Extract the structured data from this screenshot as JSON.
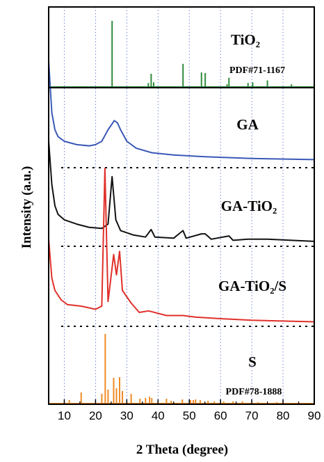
{
  "chart_data": {
    "type": "line",
    "title": "",
    "xlabel": "2 Theta (degree)",
    "ylabel": "Intensity (a.u.)",
    "xlim": [
      5,
      90
    ],
    "xticks": [
      10,
      20,
      30,
      40,
      50,
      60,
      70,
      80,
      90
    ],
    "grid": "vertical dotted lines at x ticks",
    "panels": [
      {
        "name": "TiO2",
        "label_main": "TiO₂",
        "label_sub": "PDF#71-1167",
        "kind": "reference_sticks",
        "color": "#2e8b3a",
        "peaks_x": [
          25.3,
          36.9,
          37.8,
          38.6,
          48.0,
          53.9,
          55.1,
          62.1,
          62.7,
          68.8,
          70.3,
          75.0,
          82.7
        ],
        "peaks_rel_height": [
          1.0,
          0.06,
          0.2,
          0.07,
          0.35,
          0.22,
          0.21,
          0.04,
          0.14,
          0.06,
          0.07,
          0.1,
          0.04
        ]
      },
      {
        "name": "GA",
        "label_main": "GA",
        "kind": "profile",
        "color": "#3a58b6",
        "points": [
          [
            5,
            0.9
          ],
          [
            6,
            0.45
          ],
          [
            7,
            0.3
          ],
          [
            8,
            0.24
          ],
          [
            10,
            0.2
          ],
          [
            14,
            0.17
          ],
          [
            18,
            0.16
          ],
          [
            20,
            0.17
          ],
          [
            22,
            0.2
          ],
          [
            24,
            0.3
          ],
          [
            26,
            0.38
          ],
          [
            27,
            0.36
          ],
          [
            28,
            0.3
          ],
          [
            30,
            0.2
          ],
          [
            33,
            0.14
          ],
          [
            38,
            0.1
          ],
          [
            45,
            0.08
          ],
          [
            55,
            0.065
          ],
          [
            70,
            0.05
          ],
          [
            90,
            0.04
          ]
        ],
        "baseline": "dotted"
      },
      {
        "name": "GA-TiO2",
        "label_main": "GA-TiO₂",
        "kind": "profile",
        "color": "#111111",
        "points": [
          [
            5,
            0.95
          ],
          [
            6,
            0.55
          ],
          [
            7,
            0.35
          ],
          [
            8,
            0.27
          ],
          [
            10,
            0.22
          ],
          [
            14,
            0.18
          ],
          [
            18,
            0.15
          ],
          [
            22,
            0.14
          ],
          [
            24,
            0.18
          ],
          [
            25.3,
            0.62
          ],
          [
            26.5,
            0.22
          ],
          [
            28,
            0.12
          ],
          [
            32,
            0.08
          ],
          [
            36,
            0.06
          ],
          [
            37.8,
            0.13
          ],
          [
            39,
            0.06
          ],
          [
            45,
            0.05
          ],
          [
            48,
            0.12
          ],
          [
            49,
            0.05
          ],
          [
            53.9,
            0.09
          ],
          [
            55.1,
            0.09
          ],
          [
            57,
            0.04
          ],
          [
            62.7,
            0.07
          ],
          [
            64,
            0.03
          ],
          [
            68.8,
            0.04
          ],
          [
            70.3,
            0.04
          ],
          [
            75,
            0.04
          ],
          [
            82.7,
            0.03
          ],
          [
            90,
            0.02
          ]
        ],
        "baseline": "dotted"
      },
      {
        "name": "GA-TiO2/S",
        "label_main": "GA-TiO₂/S",
        "kind": "profile",
        "color": "#e0302a",
        "points": [
          [
            5,
            0.55
          ],
          [
            6,
            0.3
          ],
          [
            7,
            0.22
          ],
          [
            9,
            0.16
          ],
          [
            11,
            0.13
          ],
          [
            15.4,
            0.12
          ],
          [
            20,
            0.1
          ],
          [
            22,
            0.12
          ],
          [
            23,
            1.0
          ],
          [
            24,
            0.15
          ],
          [
            25.8,
            0.45
          ],
          [
            26.7,
            0.32
          ],
          [
            27.7,
            0.47
          ],
          [
            28.6,
            0.22
          ],
          [
            31.4,
            0.14
          ],
          [
            34,
            0.08
          ],
          [
            37,
            0.09
          ],
          [
            42.7,
            0.06
          ],
          [
            48,
            0.06
          ],
          [
            52,
            0.05
          ],
          [
            60,
            0.04
          ],
          [
            70,
            0.03
          ],
          [
            90,
            0.02
          ]
        ],
        "baseline": "dotted"
      },
      {
        "name": "S",
        "label_main": "S",
        "label_sub": "PDF#78-1888",
        "kind": "reference_sticks",
        "color": "#f08a24",
        "peaks_x": [
          11.6,
          15.4,
          22.0,
          23.1,
          24.0,
          25.8,
          26.7,
          27.7,
          28.6,
          31.4,
          34.2,
          36.0,
          37.3,
          38.0,
          42.7,
          44.2,
          47.8,
          50.4,
          51.3,
          52.0,
          53.5,
          56.0,
          58.0,
          61.0,
          64.0,
          67.0,
          72.0,
          78.0
        ],
        "peaks_rel_height": [
          0.05,
          0.16,
          0.14,
          1.0,
          0.2,
          0.37,
          0.22,
          0.38,
          0.18,
          0.14,
          0.07,
          0.08,
          0.1,
          0.08,
          0.07,
          0.04,
          0.06,
          0.05,
          0.05,
          0.06,
          0.05,
          0.04,
          0.03,
          0.03,
          0.03,
          0.03,
          0.02,
          0.02
        ]
      }
    ]
  }
}
